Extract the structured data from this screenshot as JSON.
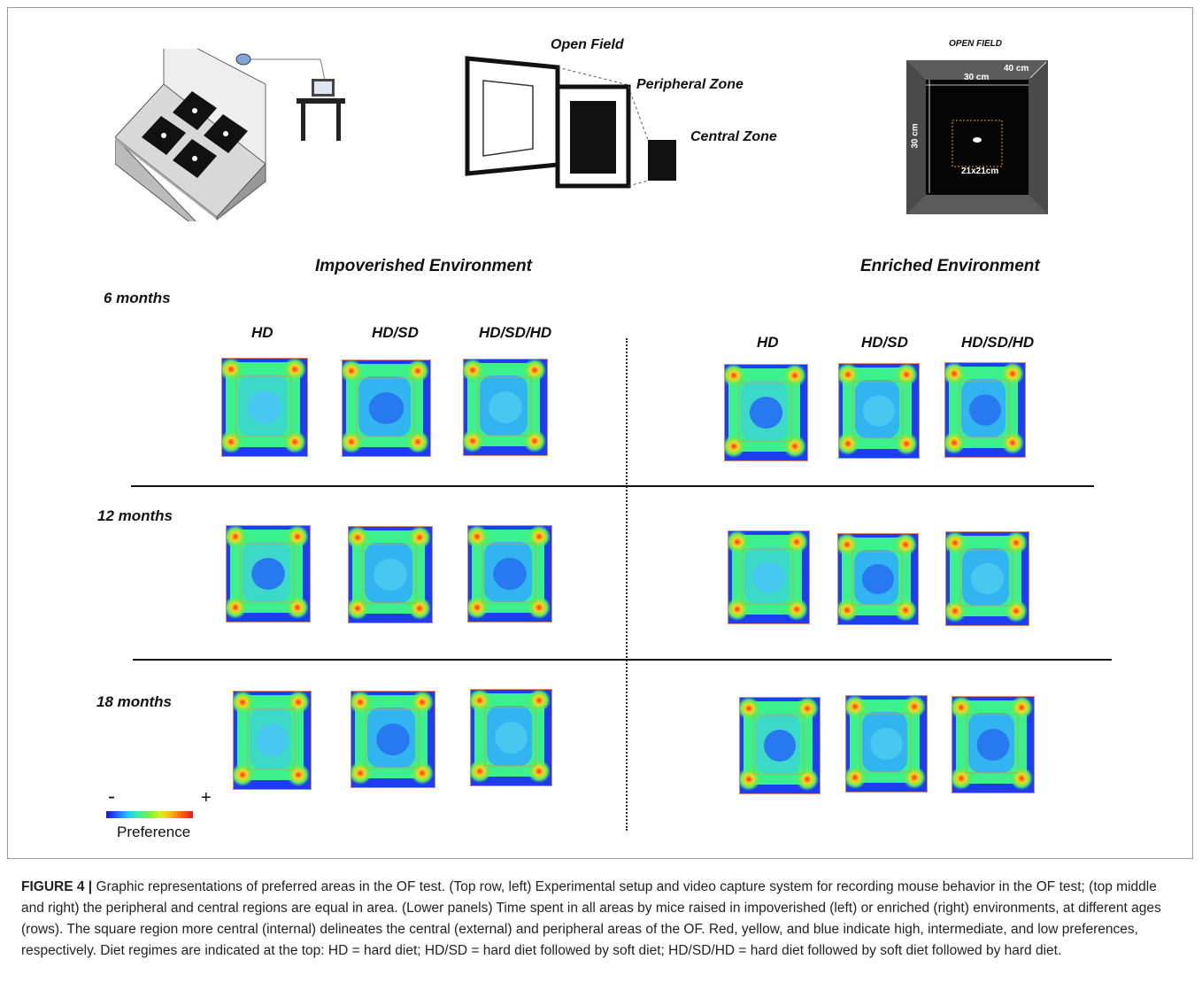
{
  "setup": {
    "open_field_label": "Open Field",
    "peripheral_zone_label": "Peripheral Zone",
    "central_zone_label": "Central Zone",
    "diagram_title": "OPEN FIELD",
    "dim_30cm_top": "30 cm",
    "dim_40cm": "40 cm",
    "dim_30cm_side": "30 cm",
    "dim_center": "21x21cm"
  },
  "environments": {
    "impoverished": "Impoverished Environment",
    "enriched": "Enriched Environment"
  },
  "rows": [
    "6 months",
    "12 months",
    "18 months"
  ],
  "diets": [
    "HD",
    "HD/SD",
    "HD/SD/HD"
  ],
  "legend": {
    "minus": "-",
    "plus": "+",
    "label": "Preference"
  },
  "caption": {
    "label": "FIGURE 4 |",
    "text": "Graphic representations of preferred areas in the OF test. (Top row, left) Experimental setup and video capture system for recording mouse behavior in the OF test; (top middle and right) the peripheral and central regions are equal in area. (Lower panels) Time spent in all areas by mice raised in impoverished (left) or enriched (right) environments, at different ages (rows). The square region more central (internal) delineates the central (external) and peripheral areas of the OF. Red, yellow, and blue indicate high, intermediate, and low preferences, respectively. Diet regimes are indicated at the top: HD = hard diet; HD/SD = hard diet followed by soft diet; HD/SD/HD = hard diet followed by soft diet followed by hard diet."
  },
  "colors": {
    "high": "#e11e28",
    "intermediate": "#dcf01e",
    "low": "#1a14c8"
  }
}
